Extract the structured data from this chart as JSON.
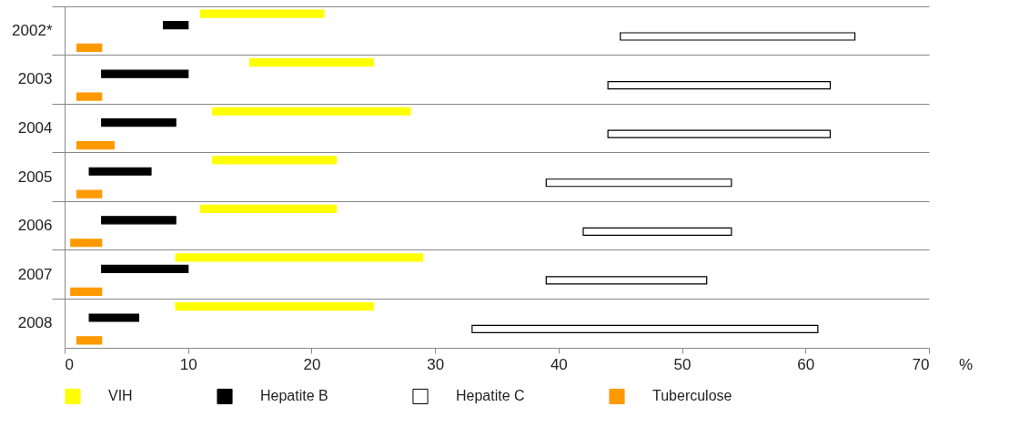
{
  "chart_data": {
    "type": "bar",
    "orientation": "horizontal",
    "xlabel": "%",
    "categories": [
      "2002*",
      "2003",
      "2004",
      "2005",
      "2006",
      "2007",
      "2008"
    ],
    "series": [
      {
        "name": "VIH",
        "color": "#ffff00",
        "base": [
          11,
          15,
          12,
          12,
          11,
          9,
          9
        ],
        "values": [
          10,
          10,
          16,
          10,
          11,
          20,
          16
        ]
      },
      {
        "name": "Hepatite B",
        "color": "#000000",
        "base": [
          8,
          3,
          3,
          2,
          3,
          3,
          2
        ],
        "values": [
          2,
          7,
          6,
          5,
          6,
          7,
          4
        ]
      },
      {
        "name": "Hepatite C",
        "color": "#ffffff",
        "base": [
          45,
          44,
          44,
          39,
          42,
          39,
          33
        ],
        "values": [
          19,
          18,
          18,
          15,
          12,
          13,
          28
        ]
      },
      {
        "name": "Tuberculose",
        "color": "#ff9900",
        "base": [
          1,
          1,
          1,
          1,
          0.5,
          0.5,
          1
        ],
        "values": [
          2,
          2,
          3,
          2,
          2.5,
          2.5,
          2
        ]
      }
    ],
    "xlim": [
      0,
      70
    ],
    "xticks": [
      0,
      10,
      20,
      30,
      40,
      50,
      60,
      70
    ],
    "grid": "y",
    "legend": "bottom"
  }
}
